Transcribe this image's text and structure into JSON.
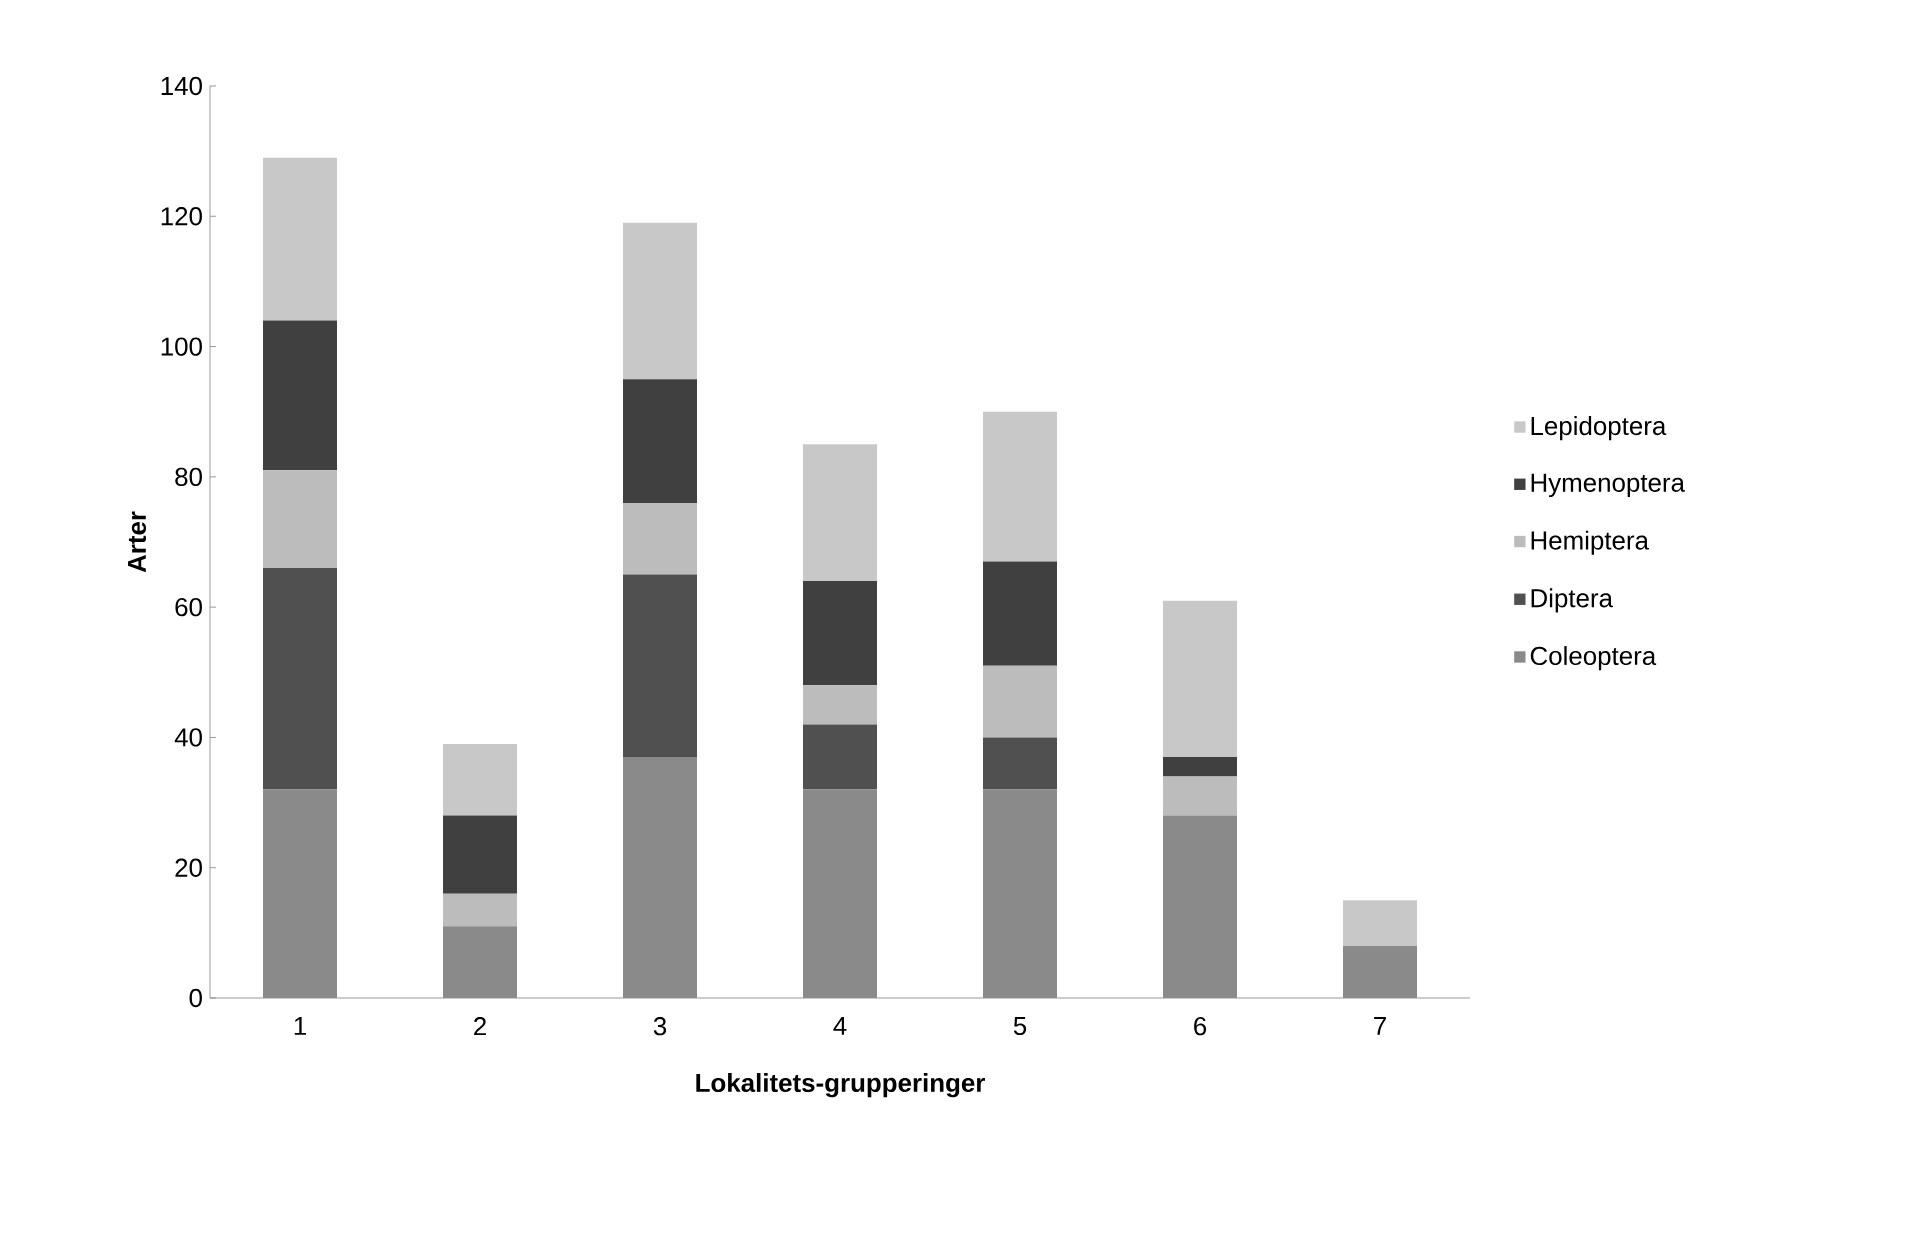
{
  "chart_data": {
    "type": "bar",
    "stacked": true,
    "xlabel": "Lokalitets-grupperinger",
    "ylabel": "Arter",
    "categories": [
      "1",
      "2",
      "3",
      "4",
      "5",
      "6",
      "7"
    ],
    "series": [
      {
        "name": "Coleoptera",
        "color": "#8a8a8a",
        "values": [
          32,
          11,
          37,
          32,
          32,
          28,
          8
        ]
      },
      {
        "name": "Diptera",
        "color": "#505050",
        "values": [
          34,
          0,
          28,
          10,
          8,
          0,
          0
        ]
      },
      {
        "name": "Hemiptera",
        "color": "#bcbcbc",
        "values": [
          15,
          5,
          11,
          6,
          11,
          6,
          0
        ]
      },
      {
        "name": "Hymenoptera",
        "color": "#404040",
        "values": [
          23,
          12,
          19,
          16,
          16,
          3,
          0
        ]
      },
      {
        "name": "Lepidoptera",
        "color": "#c8c8c8",
        "values": [
          25,
          11,
          24,
          21,
          23,
          24,
          7
        ]
      }
    ],
    "ylim": [
      0,
      140
    ],
    "yticks": [
      0,
      20,
      40,
      60,
      80,
      100,
      120,
      140
    ],
    "grid": false,
    "legend": "right"
  }
}
